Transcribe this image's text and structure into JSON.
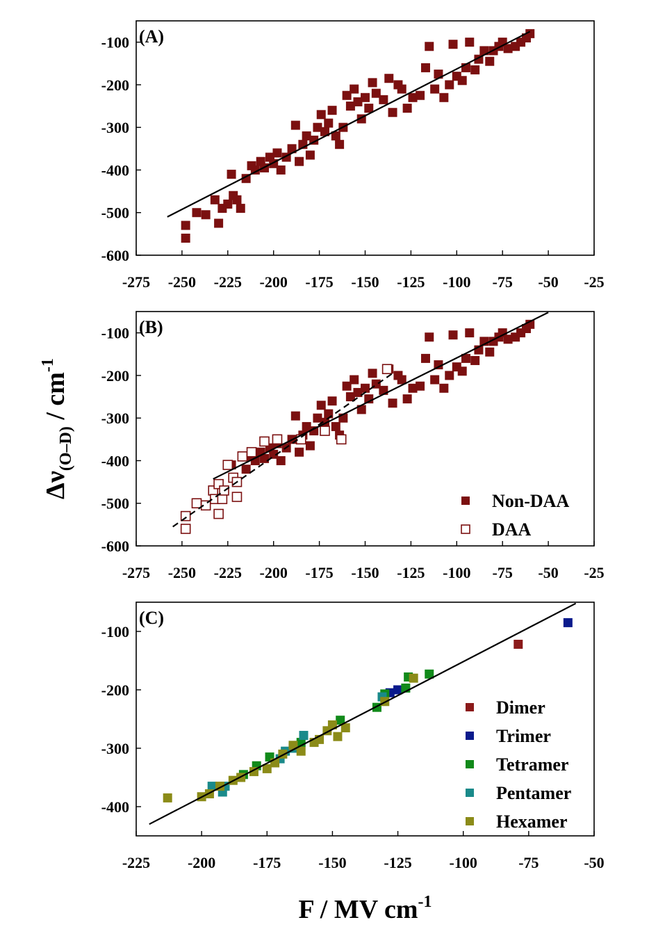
{
  "chart_data": [
    {
      "type": "scatter",
      "panel_label": "(A)",
      "xlim": [
        -275,
        -25
      ],
      "ylim": [
        -600,
        -50
      ],
      "xticks": [
        -275,
        -250,
        -225,
        -200,
        -175,
        -150,
        -125,
        -100,
        -75,
        -50,
        -25
      ],
      "yticks": [
        -600,
        -500,
        -400,
        -300,
        -200,
        -100
      ],
      "series": [
        {
          "color": "#7b1010",
          "marker": "filled",
          "x": [
            -248,
            -248,
            -242,
            -237,
            -232,
            -230,
            -228,
            -225,
            -222,
            -220,
            -218,
            -223,
            -215,
            -212,
            -210,
            -207,
            -205,
            -202,
            -200,
            -198,
            -196,
            -193,
            -190,
            -188,
            -186,
            -184,
            -182,
            -180,
            -178,
            -176,
            -174,
            -172,
            -170,
            -168,
            -166,
            -164,
            -162,
            -160,
            -158,
            -156,
            -154,
            -152,
            -150,
            -148,
            -146,
            -144,
            -140,
            -137,
            -135,
            -132,
            -130,
            -127,
            -124,
            -120,
            -117,
            -115,
            -112,
            -110,
            -107,
            -104,
            -102,
            -100,
            -97,
            -95,
            -93,
            -90,
            -88,
            -85,
            -82,
            -80,
            -77,
            -75,
            -72,
            -68,
            -65,
            -62,
            -60
          ],
          "values": [
            -530,
            -560,
            -500,
            -505,
            -470,
            -525,
            -490,
            -480,
            -460,
            -470,
            -490,
            -410,
            -420,
            -390,
            -400,
            -380,
            -395,
            -370,
            -385,
            -360,
            -400,
            -370,
            -350,
            -295,
            -380,
            -340,
            -320,
            -365,
            -330,
            -300,
            -270,
            -310,
            -290,
            -260,
            -320,
            -340,
            -300,
            -225,
            -250,
            -210,
            -240,
            -280,
            -230,
            -255,
            -195,
            -220,
            -235,
            -185,
            -265,
            -200,
            -210,
            -255,
            -230,
            -225,
            -160,
            -110,
            -210,
            -175,
            -230,
            -200,
            -105,
            -180,
            -190,
            -160,
            -100,
            -165,
            -140,
            -120,
            -145,
            -120,
            -110,
            -100,
            -115,
            -110,
            -100,
            -90,
            -80
          ]
        },
        {
          "color": "#000000",
          "mode": "line",
          "dash": false,
          "x": [
            -258,
            -60
          ],
          "values": [
            -510,
            -75
          ]
        }
      ]
    },
    {
      "type": "scatter",
      "panel_label": "(B)",
      "xlim": [
        -275,
        -25
      ],
      "ylim": [
        -600,
        -50
      ],
      "xticks": [
        -275,
        -250,
        -225,
        -200,
        -175,
        -150,
        -125,
        -100,
        -75,
        -50,
        -25
      ],
      "yticks": [
        -600,
        -500,
        -400,
        -300,
        -200,
        -100
      ],
      "ylabel": {
        "main": "Δν",
        "sub": "(O–D)",
        "unit": " / cm",
        "sup": "-1"
      },
      "legend": "lower right",
      "series": [
        {
          "name": "Non-DAA",
          "color": "#7b1010",
          "marker": "filled",
          "x": [
            -223,
            -215,
            -212,
            -210,
            -207,
            -205,
            -202,
            -200,
            -198,
            -196,
            -193,
            -190,
            -188,
            -186,
            -184,
            -182,
            -180,
            -178,
            -176,
            -174,
            -172,
            -170,
            -168,
            -166,
            -164,
            -162,
            -160,
            -158,
            -156,
            -154,
            -152,
            -150,
            -148,
            -146,
            -144,
            -140,
            -137,
            -135,
            -132,
            -130,
            -127,
            -124,
            -120,
            -117,
            -115,
            -112,
            -110,
            -107,
            -104,
            -102,
            -100,
            -97,
            -95,
            -93,
            -90,
            -88,
            -85,
            -82,
            -80,
            -77,
            -75,
            -72,
            -68,
            -65,
            -62,
            -60
          ],
          "values": [
            -410,
            -420,
            -390,
            -400,
            -380,
            -395,
            -370,
            -385,
            -360,
            -400,
            -370,
            -350,
            -295,
            -380,
            -340,
            -320,
            -365,
            -330,
            -300,
            -270,
            -310,
            -290,
            -260,
            -320,
            -340,
            -300,
            -225,
            -250,
            -210,
            -240,
            -280,
            -230,
            -255,
            -195,
            -220,
            -235,
            -185,
            -265,
            -200,
            -210,
            -255,
            -230,
            -225,
            -160,
            -110,
            -210,
            -175,
            -230,
            -200,
            -105,
            -180,
            -190,
            -160,
            -100,
            -165,
            -140,
            -120,
            -145,
            -120,
            -110,
            -100,
            -115,
            -110,
            -100,
            -90,
            -80
          ]
        },
        {
          "name": "DAA",
          "color": "#7b1010",
          "marker": "open",
          "x": [
            -248,
            -248,
            -242,
            -237,
            -233,
            -232,
            -230,
            -230,
            -228,
            -227,
            -225,
            -222,
            -220,
            -220,
            -217,
            -212,
            -205,
            -198,
            -185,
            -172,
            -163,
            -138
          ],
          "values": [
            -530,
            -560,
            -500,
            -505,
            -470,
            -490,
            -525,
            -455,
            -490,
            -470,
            -410,
            -440,
            -485,
            -450,
            -390,
            -380,
            -355,
            -350,
            -350,
            -330,
            -350,
            -185
          ]
        },
        {
          "color": "#000000",
          "mode": "line",
          "dash": false,
          "x": [
            -233,
            -50
          ],
          "values": [
            -443,
            -52
          ]
        },
        {
          "color": "#000000",
          "mode": "line",
          "dash": true,
          "x": [
            -255,
            -135
          ],
          "values": [
            -555,
            -195
          ]
        }
      ]
    },
    {
      "type": "scatter",
      "panel_label": "(C)",
      "xlim": [
        -225,
        -50
      ],
      "ylim": [
        -450,
        -50
      ],
      "xticks": [
        -225,
        -200,
        -175,
        -150,
        -125,
        -100,
        -75,
        -50
      ],
      "yticks": [
        -400,
        -300,
        -200,
        -100
      ],
      "xlabel": {
        "main": "F / MV cm",
        "sup": "-1"
      },
      "legend": "right",
      "series": [
        {
          "name": "Dimer",
          "color": "#8b1a1a",
          "marker": "filled",
          "x": [
            -79
          ],
          "values": [
            -122
          ]
        },
        {
          "name": "Trimer",
          "color": "#0a1a8c",
          "marker": "filled",
          "x": [
            -60,
            -125,
            -128
          ],
          "values": [
            -85,
            -200,
            -205
          ]
        },
        {
          "name": "Tetramer",
          "color": "#118a1a",
          "marker": "filled",
          "x": [
            -113,
            -121,
            -122,
            -133,
            -147,
            -174,
            -184,
            -179,
            -162,
            -130
          ],
          "values": [
            -173,
            -178,
            -197,
            -230,
            -252,
            -315,
            -345,
            -330,
            -290,
            -207
          ]
        },
        {
          "name": "Pentamer",
          "color": "#1a8a8a",
          "marker": "filled",
          "x": [
            -196,
            -192,
            -170,
            -168,
            -161,
            -165,
            -131,
            -191
          ],
          "values": [
            -365,
            -375,
            -318,
            -305,
            -278,
            -300,
            -212,
            -365
          ]
        },
        {
          "name": "Hexamer",
          "color": "#8b8b18",
          "marker": "filled",
          "x": [
            -213,
            -200,
            -197,
            -193,
            -188,
            -185,
            -180,
            -175,
            -172,
            -169,
            -165,
            -162,
            -157,
            -155,
            -152,
            -150,
            -148,
            -145,
            -130,
            -119
          ],
          "values": [
            -385,
            -383,
            -378,
            -365,
            -355,
            -350,
            -340,
            -335,
            -325,
            -310,
            -295,
            -305,
            -290,
            -285,
            -270,
            -260,
            -280,
            -265,
            -220,
            -180
          ]
        },
        {
          "color": "#000000",
          "mode": "line",
          "dash": false,
          "x": [
            -220,
            -57
          ],
          "values": [
            -430,
            -52
          ]
        }
      ]
    }
  ]
}
